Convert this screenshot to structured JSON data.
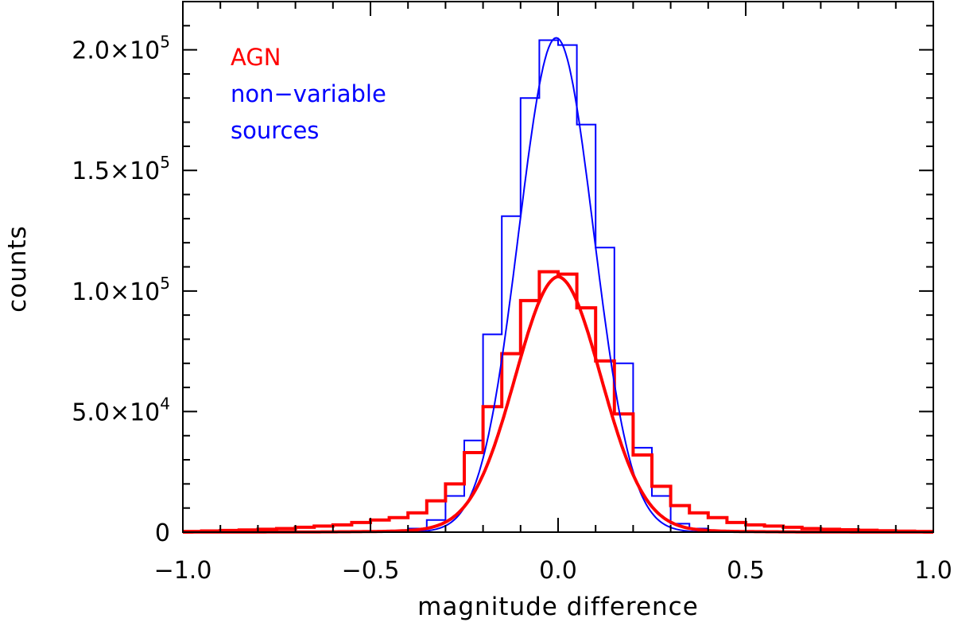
{
  "chart_data": {
    "type": "line",
    "title": "",
    "xlabel": "magnitude difference",
    "ylabel": "counts",
    "xlim": [
      -1.0,
      1.0
    ],
    "ylim": [
      0,
      220000
    ],
    "grid": false,
    "legend_placement": "top-left",
    "x_ticks": [
      {
        "value": -1.0,
        "label": "−1.0"
      },
      {
        "value": -0.5,
        "label": "−0.5"
      },
      {
        "value": 0.0,
        "label": "0.0"
      },
      {
        "value": 0.5,
        "label": "0.5"
      },
      {
        "value": 1.0,
        "label": "1.0"
      }
    ],
    "y_ticks": [
      {
        "value": 0,
        "mantissa": "0",
        "exponent": ""
      },
      {
        "value": 50000,
        "mantissa": "5.0×10",
        "exponent": "4"
      },
      {
        "value": 100000,
        "mantissa": "1.0×10",
        "exponent": "5"
      },
      {
        "value": 150000,
        "mantissa": "1.5×10",
        "exponent": "5"
      },
      {
        "value": 200000,
        "mantissa": "2.0×10",
        "exponent": "5"
      }
    ],
    "series": [
      {
        "name": "non−variable sources",
        "legend_lines": [
          "non−variable",
          "sources"
        ],
        "color": "#0000ff",
        "style": "histogram+fit",
        "bin_width": 0.05,
        "bin_left_edges": [
          -1.0,
          -0.95,
          -0.9,
          -0.85,
          -0.8,
          -0.75,
          -0.7,
          -0.65,
          -0.6,
          -0.55,
          -0.5,
          -0.45,
          -0.4,
          -0.35,
          -0.3,
          -0.25,
          -0.2,
          -0.15,
          -0.1,
          -0.05,
          0.0,
          0.05,
          0.1,
          0.15,
          0.2,
          0.25,
          0.3,
          0.35,
          0.4,
          0.45,
          0.5,
          0.55,
          0.6,
          0.65,
          0.7,
          0.75,
          0.8,
          0.85,
          0.9,
          0.95
        ],
        "counts": [
          0,
          0,
          0,
          0,
          0,
          0,
          0,
          0,
          0,
          0,
          0,
          500,
          1500,
          5000,
          15000,
          38000,
          82000,
          131000,
          180000,
          204000,
          202000,
          169000,
          118000,
          70000,
          35000,
          15000,
          3500,
          1500,
          500,
          0,
          0,
          0,
          0,
          0,
          0,
          0,
          0,
          0,
          0,
          0
        ],
        "fit": {
          "shape": "gaussian",
          "amplitude": 205000,
          "mean": -0.005,
          "sigma": 0.1
        }
      },
      {
        "name": "AGN",
        "legend_lines": [
          "AGN"
        ],
        "color": "#ff0000",
        "style": "histogram+fit",
        "bin_width": 0.05,
        "bin_left_edges": [
          -1.0,
          -0.95,
          -0.9,
          -0.85,
          -0.8,
          -0.75,
          -0.7,
          -0.65,
          -0.6,
          -0.55,
          -0.5,
          -0.45,
          -0.4,
          -0.35,
          -0.3,
          -0.25,
          -0.2,
          -0.15,
          -0.1,
          -0.05,
          0.0,
          0.05,
          0.1,
          0.15,
          0.2,
          0.25,
          0.3,
          0.35,
          0.4,
          0.45,
          0.5,
          0.55,
          0.6,
          0.65,
          0.7,
          0.75,
          0.8,
          0.85,
          0.9,
          0.95
        ],
        "counts": [
          300,
          500,
          700,
          900,
          1200,
          1500,
          2000,
          2500,
          3000,
          4000,
          5000,
          6000,
          8000,
          13000,
          20000,
          33000,
          52000,
          74000,
          96000,
          108000,
          107000,
          93000,
          71000,
          49000,
          32000,
          19000,
          11000,
          8000,
          6000,
          4000,
          3000,
          2500,
          2000,
          1500,
          1200,
          1000,
          800,
          600,
          400,
          300
        ],
        "fit": {
          "shape": "lorentzian-gaussian",
          "amplitude": 106000,
          "mean": 0.0,
          "sigma": 0.115,
          "wing_fraction": 0.04,
          "wing_width": 0.35
        }
      }
    ]
  }
}
